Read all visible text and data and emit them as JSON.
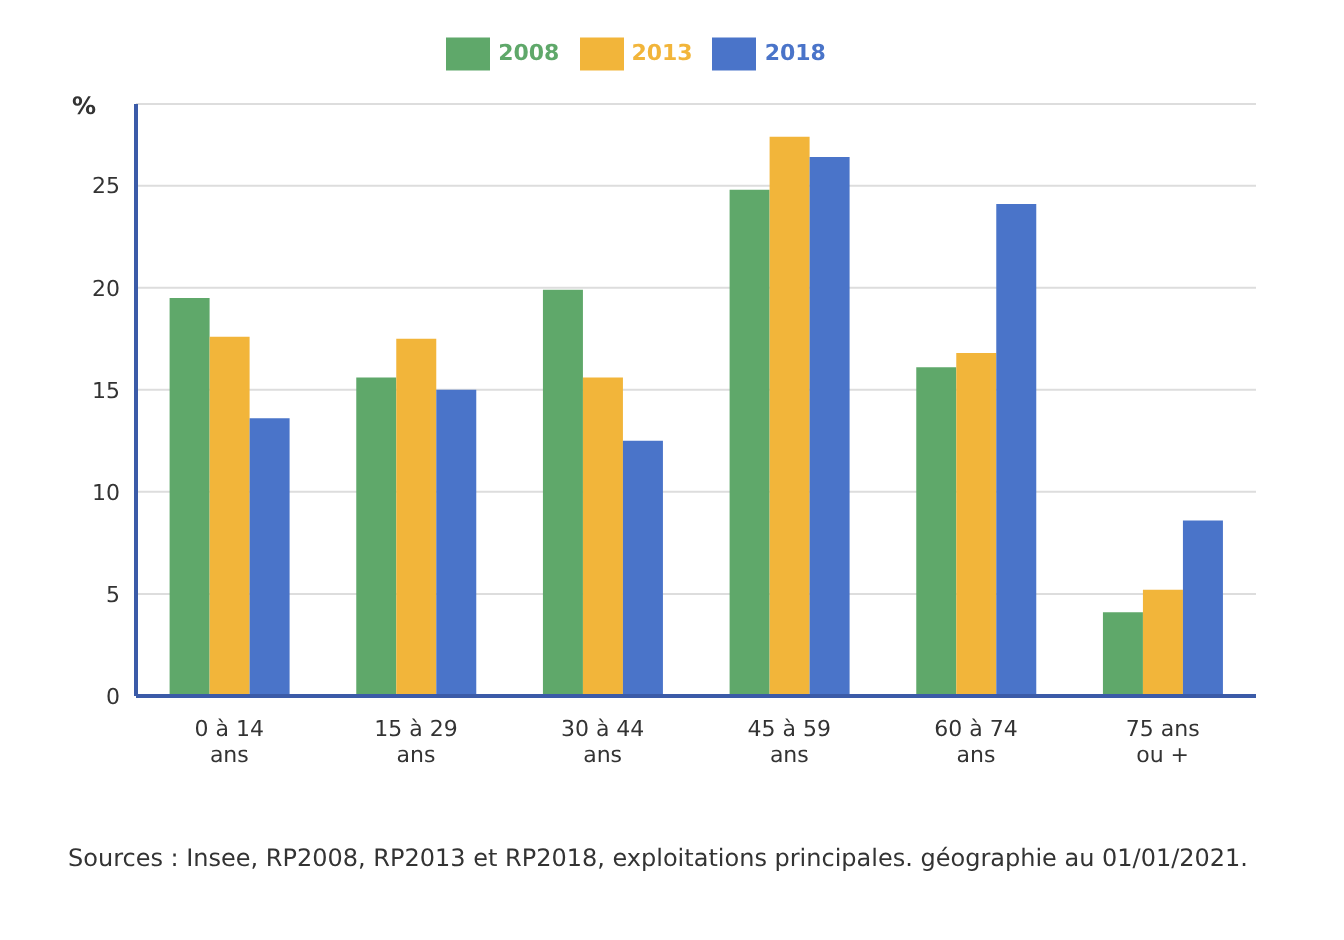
{
  "chart_data": {
    "type": "bar",
    "ylabel": "%",
    "categories": [
      "0 à 14\nans",
      "15 à 29\nans",
      "30 à 44\nans",
      "45 à 59\nans",
      "60 à 74\nans",
      "75 ans\nou +"
    ],
    "series": [
      {
        "name": "2008",
        "color": "#5fa86a",
        "values": [
          19.5,
          15.6,
          19.9,
          24.8,
          16.1,
          4.1
        ]
      },
      {
        "name": "2013",
        "color": "#f2b53a",
        "values": [
          17.6,
          17.5,
          15.6,
          27.4,
          16.8,
          5.2
        ]
      },
      {
        "name": "2018",
        "color": "#4a74c9",
        "values": [
          13.6,
          15.0,
          12.5,
          26.4,
          24.1,
          8.6
        ]
      }
    ],
    "ylim": [
      0,
      29
    ],
    "yticks": [
      0,
      5,
      10,
      15,
      20,
      25
    ],
    "grid": "y",
    "legend": "top",
    "annotations": [
      "Sources : Insee, RP2008, RP2013 et RP2018, exploitations principales. géographie au 01/01/2021."
    ]
  }
}
